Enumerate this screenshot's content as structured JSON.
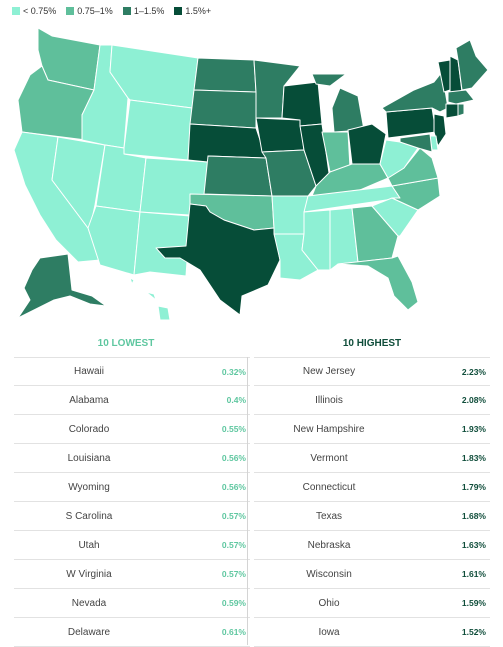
{
  "colors": {
    "bin1": "#8ef0d4",
    "bin2": "#5fbf9b",
    "bin3": "#2e7d63",
    "bin4": "#064d38"
  },
  "legend": [
    {
      "label": "< 0.75%",
      "color": "#8ef0d4"
    },
    {
      "label": "0.75–1%",
      "color": "#5fbf9b"
    },
    {
      "label": "1–1.5%",
      "color": "#2e7d63"
    },
    {
      "label": "1.5%+",
      "color": "#064d38"
    }
  ],
  "lowest": {
    "title": "10 LOWEST",
    "rows": [
      {
        "state": "Hawaii",
        "value": "0.32%"
      },
      {
        "state": "Alabama",
        "value": "0.4%"
      },
      {
        "state": "Colorado",
        "value": "0.55%"
      },
      {
        "state": "Louisiana",
        "value": "0.56%"
      },
      {
        "state": "Wyoming",
        "value": "0.56%"
      },
      {
        "state": "S Carolina",
        "value": "0.57%"
      },
      {
        "state": "Utah",
        "value": "0.57%"
      },
      {
        "state": "W Virginia",
        "value": "0.57%"
      },
      {
        "state": "Nevada",
        "value": "0.59%"
      },
      {
        "state": "Delaware",
        "value": "0.61%"
      }
    ]
  },
  "highest": {
    "title": "10 HIGHEST",
    "rows": [
      {
        "state": "New Jersey",
        "value": "2.23%"
      },
      {
        "state": "Illinois",
        "value": "2.08%"
      },
      {
        "state": "New Hampshire",
        "value": "1.93%"
      },
      {
        "state": "Vermont",
        "value": "1.83%"
      },
      {
        "state": "Connecticut",
        "value": "1.79%"
      },
      {
        "state": "Texas",
        "value": "1.68%"
      },
      {
        "state": "Nebraska",
        "value": "1.63%"
      },
      {
        "state": "Wisconsin",
        "value": "1.61%"
      },
      {
        "state": "Ohio",
        "value": "1.59%"
      },
      {
        "state": "Iowa",
        "value": "1.52%"
      }
    ]
  },
  "map_states": [
    {
      "id": "WA",
      "bin": 2
    },
    {
      "id": "OR",
      "bin": 2
    },
    {
      "id": "CA",
      "bin": 1
    },
    {
      "id": "NV",
      "bin": 1
    },
    {
      "id": "ID",
      "bin": 1
    },
    {
      "id": "MT",
      "bin": 1
    },
    {
      "id": "WY",
      "bin": 1
    },
    {
      "id": "UT",
      "bin": 1
    },
    {
      "id": "AZ",
      "bin": 1
    },
    {
      "id": "CO",
      "bin": 1
    },
    {
      "id": "NM",
      "bin": 1
    },
    {
      "id": "ND",
      "bin": 3
    },
    {
      "id": "SD",
      "bin": 3
    },
    {
      "id": "NE",
      "bin": 4
    },
    {
      "id": "KS",
      "bin": 3
    },
    {
      "id": "OK",
      "bin": 2
    },
    {
      "id": "TX",
      "bin": 4
    },
    {
      "id": "MN",
      "bin": 3
    },
    {
      "id": "IA",
      "bin": 4
    },
    {
      "id": "MO",
      "bin": 3
    },
    {
      "id": "AR",
      "bin": 1
    },
    {
      "id": "LA",
      "bin": 1
    },
    {
      "id": "WI",
      "bin": 4
    },
    {
      "id": "IL",
      "bin": 4
    },
    {
      "id": "MI",
      "bin": 3
    },
    {
      "id": "IN",
      "bin": 2
    },
    {
      "id": "OH",
      "bin": 4
    },
    {
      "id": "KY",
      "bin": 2
    },
    {
      "id": "TN",
      "bin": 1
    },
    {
      "id": "MS",
      "bin": 1
    },
    {
      "id": "AL",
      "bin": 1
    },
    {
      "id": "GA",
      "bin": 2
    },
    {
      "id": "FL",
      "bin": 2
    },
    {
      "id": "SC",
      "bin": 1
    },
    {
      "id": "NC",
      "bin": 2
    },
    {
      "id": "VA",
      "bin": 2
    },
    {
      "id": "WV",
      "bin": 1
    },
    {
      "id": "PA",
      "bin": 4
    },
    {
      "id": "NY",
      "bin": 3
    },
    {
      "id": "VT",
      "bin": 4
    },
    {
      "id": "NH",
      "bin": 4
    },
    {
      "id": "ME",
      "bin": 3
    },
    {
      "id": "MA",
      "bin": 3
    },
    {
      "id": "CT",
      "bin": 4
    },
    {
      "id": "RI",
      "bin": 3
    },
    {
      "id": "NJ",
      "bin": 4
    },
    {
      "id": "DE",
      "bin": 1
    },
    {
      "id": "MD",
      "bin": 3
    },
    {
      "id": "AK",
      "bin": 3
    },
    {
      "id": "HI",
      "bin": 1
    }
  ]
}
